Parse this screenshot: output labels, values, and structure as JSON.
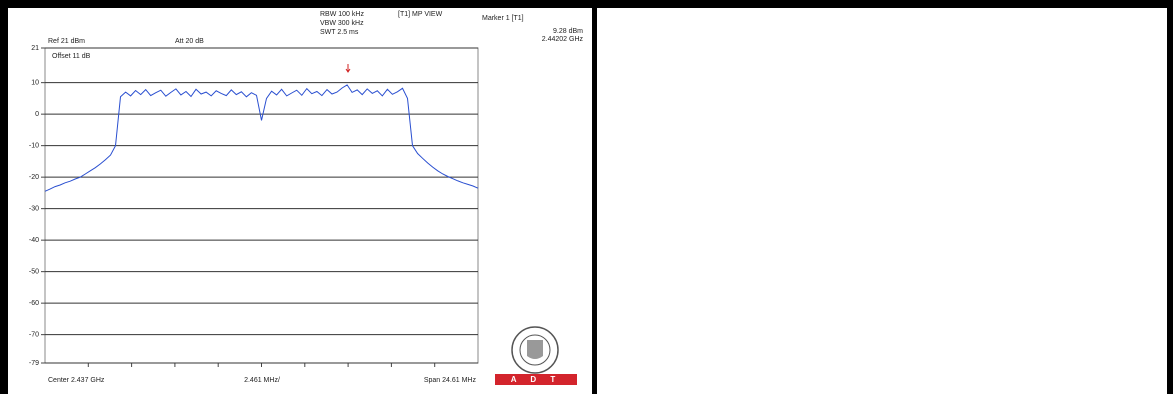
{
  "chart_data": {
    "type": "line",
    "settings": {
      "ref": "Ref 21 dBm",
      "att": "Att 20 dB",
      "offset": "Offset 11 dB",
      "rbw": "RBW 100 kHz",
      "vbw": "VBW 300 kHz",
      "swt": "SWT 2.5 ms",
      "view": "[T1] MP VIEW",
      "marker_title": "Marker 1 [T1]",
      "marker_level": "9.28 dBm",
      "marker_freq": "2.44202 GHz",
      "center": "Center 2.437 GHz",
      "div": "2.461 MHz/",
      "span": "Span 24.61 MHz"
    },
    "logo_text": "A D T",
    "color": "#2a4fd0",
    "grid": true,
    "ylim": [
      -79,
      21
    ],
    "yticks": [
      21,
      10,
      0,
      -10,
      -20,
      -30,
      -40,
      -50,
      -60,
      -70,
      -79
    ],
    "values": [
      -24.5,
      -23.8,
      -23,
      -22.5,
      -21.8,
      -21.3,
      -20.6,
      -20,
      -19,
      -18,
      -17,
      -15.8,
      -14.5,
      -13,
      -10,
      5.5,
      7,
      5.8,
      7.5,
      6.2,
      7.8,
      5.9,
      6.8,
      7.6,
      5.7,
      6.9,
      8,
      6.1,
      7.2,
      5.6,
      7.9,
      6.4,
      7,
      5.8,
      7.4,
      6.6,
      5.9,
      7.7,
      6.2,
      7.1,
      5.5,
      6.8,
      6,
      -2,
      5,
      7.3,
      6.1,
      7.9,
      5.8,
      6.7,
      7.6,
      6,
      8.1,
      6.5,
      7.2,
      5.9,
      7.8,
      6.4,
      7,
      8.3,
      9.3,
      6.9,
      7.7,
      6.2,
      8,
      6.6,
      7.4,
      5.8,
      7.9,
      6.3,
      7.1,
      8.2,
      5,
      -10,
      -12.5,
      -14,
      -15.5,
      -16.8,
      -18,
      -19,
      -19.8,
      -20.5,
      -21.2,
      -21.8,
      -22.3,
      -22.8,
      -23.5
    ]
  }
}
